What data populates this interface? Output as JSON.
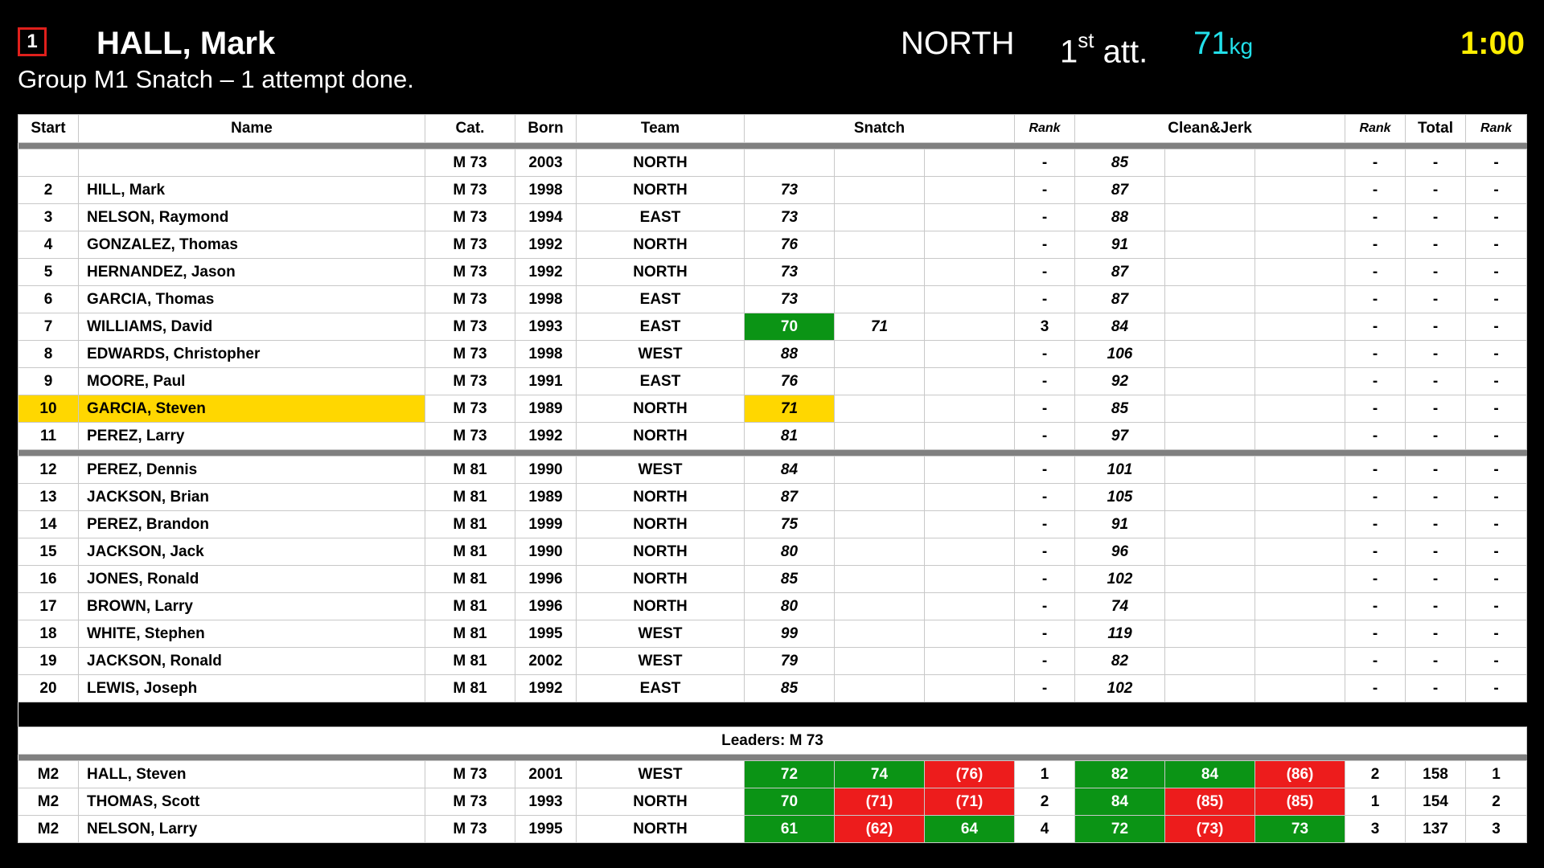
{
  "header": {
    "start_number": "1",
    "athlete_name": "HALL, Mark",
    "team": "NORTH",
    "attempt_num": "1",
    "attempt_suffix": "st",
    "attempt_label": "att.",
    "weight": "71",
    "weight_unit": "kg",
    "clock": "1:00",
    "group_status": "Group M1 Snatch – 1 attempt done."
  },
  "columns": {
    "start": "Start",
    "name": "Name",
    "cat": "Cat.",
    "born": "Born",
    "team": "Team",
    "snatch": "Snatch",
    "rank": "Rank",
    "cj": "Clean&Jerk",
    "rank2": "Rank",
    "total": "Total",
    "rank3": "Rank"
  },
  "athletes": [
    {
      "start": "",
      "name": "",
      "cat": "M 73",
      "born": "2003",
      "team": "NORTH",
      "sn": [
        "",
        "",
        ""
      ],
      "sn_rank": "-",
      "cj": [
        "85",
        "",
        ""
      ],
      "cj_rank": "-",
      "total": "-",
      "total_rank": "-"
    },
    {
      "start": "2",
      "name": "HILL, Mark",
      "cat": "M 73",
      "born": "1998",
      "team": "NORTH",
      "sn": [
        "73",
        "",
        ""
      ],
      "sn_rank": "-",
      "cj": [
        "87",
        "",
        ""
      ],
      "cj_rank": "-",
      "total": "-",
      "total_rank": "-"
    },
    {
      "start": "3",
      "name": "NELSON, Raymond",
      "cat": "M 73",
      "born": "1994",
      "team": "EAST",
      "sn": [
        "73",
        "",
        ""
      ],
      "sn_rank": "-",
      "cj": [
        "88",
        "",
        ""
      ],
      "cj_rank": "-",
      "total": "-",
      "total_rank": "-"
    },
    {
      "start": "4",
      "name": "GONZALEZ, Thomas",
      "cat": "M 73",
      "born": "1992",
      "team": "NORTH",
      "sn": [
        "76",
        "",
        ""
      ],
      "sn_rank": "-",
      "cj": [
        "91",
        "",
        ""
      ],
      "cj_rank": "-",
      "total": "-",
      "total_rank": "-"
    },
    {
      "start": "5",
      "name": "HERNANDEZ, Jason",
      "cat": "M 73",
      "born": "1992",
      "team": "NORTH",
      "sn": [
        "73",
        "",
        ""
      ],
      "sn_rank": "-",
      "cj": [
        "87",
        "",
        ""
      ],
      "cj_rank": "-",
      "total": "-",
      "total_rank": "-"
    },
    {
      "start": "6",
      "name": "GARCIA, Thomas",
      "cat": "M 73",
      "born": "1998",
      "team": "EAST",
      "sn": [
        "73",
        "",
        ""
      ],
      "sn_rank": "-",
      "cj": [
        "87",
        "",
        ""
      ],
      "cj_rank": "-",
      "total": "-",
      "total_rank": "-"
    },
    {
      "start": "7",
      "name": "WILLIAMS, David",
      "cat": "M 73",
      "born": "1993",
      "team": "EAST",
      "sn": [
        "70",
        "71",
        ""
      ],
      "sn_rank": "3",
      "cj": [
        "84",
        "",
        ""
      ],
      "cj_rank": "-",
      "total": "-",
      "total_rank": "-"
    },
    {
      "start": "8",
      "name": "EDWARDS, Christopher",
      "cat": "M 73",
      "born": "1998",
      "team": "WEST",
      "sn": [
        "88",
        "",
        ""
      ],
      "sn_rank": "-",
      "cj": [
        "106",
        "",
        ""
      ],
      "cj_rank": "-",
      "total": "-",
      "total_rank": "-"
    },
    {
      "start": "9",
      "name": "MOORE, Paul",
      "cat": "M 73",
      "born": "1991",
      "team": "EAST",
      "sn": [
        "76",
        "",
        ""
      ],
      "sn_rank": "-",
      "cj": [
        "92",
        "",
        ""
      ],
      "cj_rank": "-",
      "total": "-",
      "total_rank": "-"
    },
    {
      "start": "10",
      "name": "GARCIA, Steven",
      "cat": "M 73",
      "born": "1989",
      "team": "NORTH",
      "sn": [
        "71",
        "",
        ""
      ],
      "sn_rank": "-",
      "cj": [
        "85",
        "",
        ""
      ],
      "cj_rank": "-",
      "total": "-",
      "total_rank": "-"
    },
    {
      "start": "11",
      "name": "PEREZ, Larry",
      "cat": "M 73",
      "born": "1992",
      "team": "NORTH",
      "sn": [
        "81",
        "",
        ""
      ],
      "sn_rank": "-",
      "cj": [
        "97",
        "",
        ""
      ],
      "cj_rank": "-",
      "total": "-",
      "total_rank": "-"
    },
    {
      "start": "12",
      "name": "PEREZ, Dennis",
      "cat": "M 81",
      "born": "1990",
      "team": "WEST",
      "sn": [
        "84",
        "",
        ""
      ],
      "sn_rank": "-",
      "cj": [
        "101",
        "",
        ""
      ],
      "cj_rank": "-",
      "total": "-",
      "total_rank": "-"
    },
    {
      "start": "13",
      "name": "JACKSON, Brian",
      "cat": "M 81",
      "born": "1989",
      "team": "NORTH",
      "sn": [
        "87",
        "",
        ""
      ],
      "sn_rank": "-",
      "cj": [
        "105",
        "",
        ""
      ],
      "cj_rank": "-",
      "total": "-",
      "total_rank": "-"
    },
    {
      "start": "14",
      "name": "PEREZ, Brandon",
      "cat": "M 81",
      "born": "1999",
      "team": "NORTH",
      "sn": [
        "75",
        "",
        ""
      ],
      "sn_rank": "-",
      "cj": [
        "91",
        "",
        ""
      ],
      "cj_rank": "-",
      "total": "-",
      "total_rank": "-"
    },
    {
      "start": "15",
      "name": "JACKSON, Jack",
      "cat": "M 81",
      "born": "1990",
      "team": "NORTH",
      "sn": [
        "80",
        "",
        ""
      ],
      "sn_rank": "-",
      "cj": [
        "96",
        "",
        ""
      ],
      "cj_rank": "-",
      "total": "-",
      "total_rank": "-"
    },
    {
      "start": "16",
      "name": "JONES, Ronald",
      "cat": "M 81",
      "born": "1996",
      "team": "NORTH",
      "sn": [
        "85",
        "",
        ""
      ],
      "sn_rank": "-",
      "cj": [
        "102",
        "",
        ""
      ],
      "cj_rank": "-",
      "total": "-",
      "total_rank": "-"
    },
    {
      "start": "17",
      "name": "BROWN, Larry",
      "cat": "M 81",
      "born": "1996",
      "team": "NORTH",
      "sn": [
        "80",
        "",
        ""
      ],
      "sn_rank": "-",
      "cj": [
        "74",
        "",
        ""
      ],
      "cj_rank": "-",
      "total": "-",
      "total_rank": "-"
    },
    {
      "start": "18",
      "name": "WHITE, Stephen",
      "cat": "M 81",
      "born": "1995",
      "team": "WEST",
      "sn": [
        "99",
        "",
        ""
      ],
      "sn_rank": "-",
      "cj": [
        "119",
        "",
        ""
      ],
      "cj_rank": "-",
      "total": "-",
      "total_rank": "-"
    },
    {
      "start": "19",
      "name": "JACKSON, Ronald",
      "cat": "M 81",
      "born": "2002",
      "team": "WEST",
      "sn": [
        "79",
        "",
        ""
      ],
      "sn_rank": "-",
      "cj": [
        "82",
        "",
        ""
      ],
      "cj_rank": "-",
      "total": "-",
      "total_rank": "-"
    },
    {
      "start": "20",
      "name": "LEWIS, Joseph",
      "cat": "M 81",
      "born": "1992",
      "team": "EAST",
      "sn": [
        "85",
        "",
        ""
      ],
      "sn_rank": "-",
      "cj": [
        "102",
        "",
        ""
      ],
      "cj_rank": "-",
      "total": "-",
      "total_rank": "-"
    }
  ],
  "leaders": {
    "label": "Leaders: M 73",
    "rows": [
      {
        "group": "M2",
        "name": "HALL, Steven",
        "cat": "M 73",
        "born": "2001",
        "team": "WEST",
        "sn": [
          "72",
          "74",
          "(76)"
        ],
        "sn_rank": "1",
        "cj": [
          "82",
          "84",
          "(86)"
        ],
        "cj_rank": "2",
        "total": "158",
        "total_rank": "1"
      },
      {
        "group": "M2",
        "name": "THOMAS, Scott",
        "cat": "M 73",
        "born": "1993",
        "team": "NORTH",
        "sn": [
          "70",
          "(71)",
          "(71)"
        ],
        "sn_rank": "2",
        "cj": [
          "84",
          "(85)",
          "(85)"
        ],
        "cj_rank": "1",
        "total": "154",
        "total_rank": "2"
      },
      {
        "group": "M2",
        "name": "NELSON, Larry",
        "cat": "M 73",
        "born": "1995",
        "team": "NORTH",
        "sn": [
          "61",
          "(62)",
          "64"
        ],
        "sn_rank": "4",
        "cj": [
          "72",
          "(73)",
          "73"
        ],
        "cj_rank": "3",
        "total": "137",
        "total_rank": "3"
      }
    ]
  },
  "colors": {
    "good_lift": "#0b9415",
    "no_lift": "#ed1c1c",
    "current_highlight": "#ffd700",
    "clock": "#ffee00",
    "weight": "#22e0ea"
  }
}
